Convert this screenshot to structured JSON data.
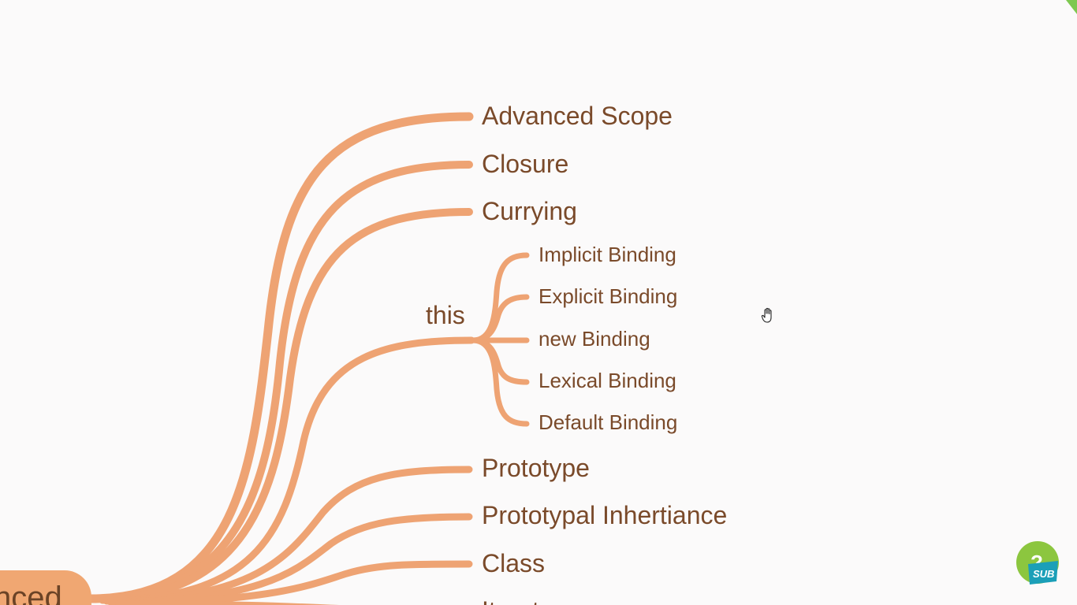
{
  "root": {
    "label": "nced"
  },
  "branches": [
    {
      "id": "advanced-scope",
      "label": "Advanced Scope"
    },
    {
      "id": "closure",
      "label": "Closure"
    },
    {
      "id": "currying",
      "label": "Currying"
    },
    {
      "id": "this",
      "label": "this",
      "children": [
        {
          "id": "implicit-binding",
          "label": "Implicit Binding"
        },
        {
          "id": "explicit-binding",
          "label": "Explicit Binding"
        },
        {
          "id": "new-binding",
          "label": "new Binding"
        },
        {
          "id": "lexical-binding",
          "label": "Lexical Binding"
        },
        {
          "id": "default-binding",
          "label": "Default Binding"
        }
      ]
    },
    {
      "id": "prototype",
      "label": "Prototype"
    },
    {
      "id": "prototypal-inheritance",
      "label": "Prototypal Inhertiance"
    },
    {
      "id": "class",
      "label": "Class"
    },
    {
      "id": "iterators",
      "label": "Iterat"
    }
  ],
  "badge": {
    "label": "SUB",
    "glyph": "?"
  },
  "colors": {
    "branch": "#eea373",
    "text": "#7a4a2a",
    "root": "#f0a772",
    "badge_green": "#8cc63f",
    "badge_blue": "#1b9fb8"
  },
  "icons": {
    "cursor": "hand-cursor-icon",
    "badge": "subscribe-badge-icon"
  }
}
